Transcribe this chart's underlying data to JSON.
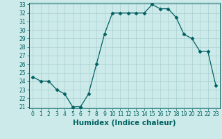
{
  "x": [
    0,
    1,
    2,
    3,
    4,
    5,
    6,
    7,
    8,
    9,
    10,
    11,
    12,
    13,
    14,
    15,
    16,
    17,
    18,
    19,
    20,
    21,
    22,
    23
  ],
  "y": [
    24.5,
    24.0,
    24.0,
    23.0,
    22.5,
    21.0,
    21.0,
    22.5,
    26.0,
    29.5,
    32.0,
    32.0,
    32.0,
    32.0,
    32.0,
    33.0,
    32.5,
    32.5,
    31.5,
    29.5,
    29.0,
    27.5,
    27.5,
    23.5
  ],
  "line_color": "#006060",
  "marker": "D",
  "marker_size": 2.5,
  "bg_color": "#cceaea",
  "grid_color": "#aacfcf",
  "xlabel": "Humidex (Indice chaleur)",
  "ylim": [
    21,
    33
  ],
  "xlim": [
    -0.5,
    23.5
  ],
  "yticks": [
    21,
    22,
    23,
    24,
    25,
    26,
    27,
    28,
    29,
    30,
    31,
    32,
    33
  ],
  "xticks": [
    0,
    1,
    2,
    3,
    4,
    5,
    6,
    7,
    8,
    9,
    10,
    11,
    12,
    13,
    14,
    15,
    16,
    17,
    18,
    19,
    20,
    21,
    22,
    23
  ],
  "tick_label_size": 5.5,
  "xlabel_size": 7.5
}
